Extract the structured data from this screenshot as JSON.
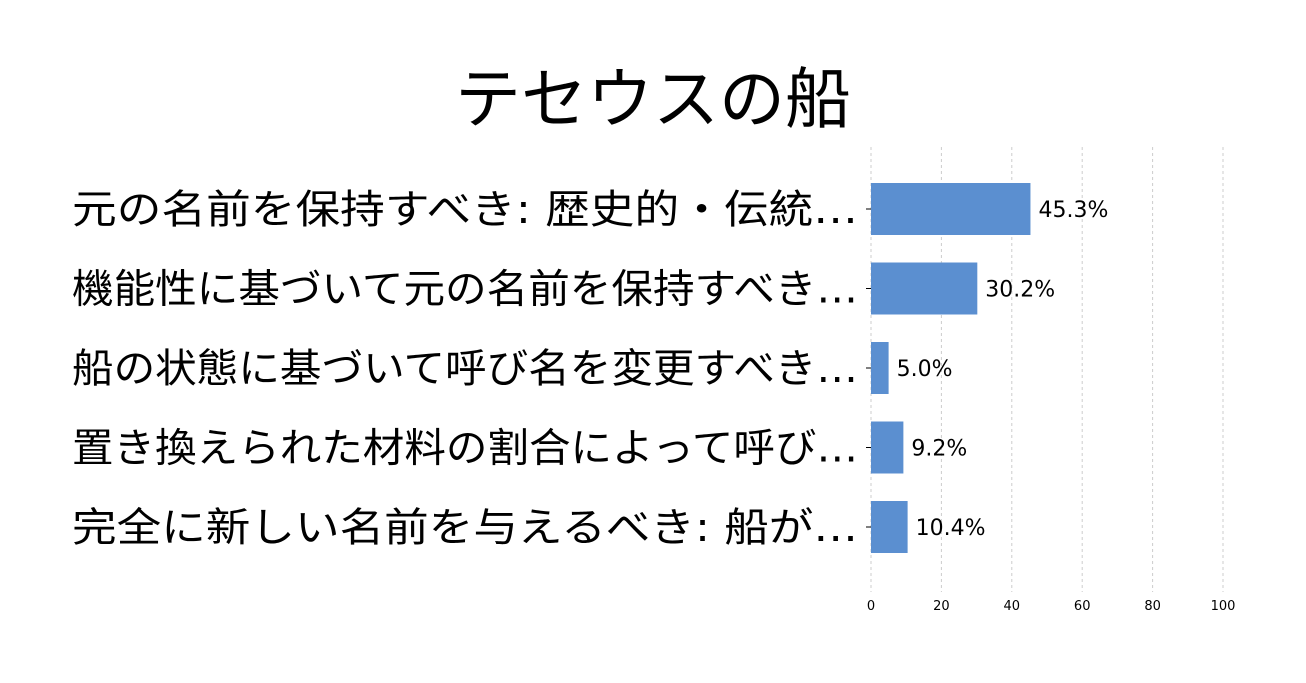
{
  "chart_data": {
    "type": "bar",
    "orientation": "horizontal",
    "title": "テセウスの船",
    "categories": [
      "元の名前を保持すべき: 歴史的・伝統…",
      "機能性に基づいて元の名前を保持すべき…",
      "船の状態に基づいて呼び名を変更すべき…",
      "置き換えられた材料の割合によって呼び…",
      "完全に新しい名前を与えるべき: 船が…"
    ],
    "values": [
      45.3,
      30.2,
      5.0,
      9.2,
      10.4
    ],
    "value_labels": [
      "45.3%",
      "30.2%",
      "5.0%",
      "9.2%",
      "10.4%"
    ],
    "xticks": [
      0,
      20,
      40,
      60,
      80,
      100
    ],
    "xlim": [
      0,
      100
    ],
    "xlabel": "",
    "ylabel": "",
    "grid": "x-dashed",
    "bar_color": "#5b8fd0"
  }
}
